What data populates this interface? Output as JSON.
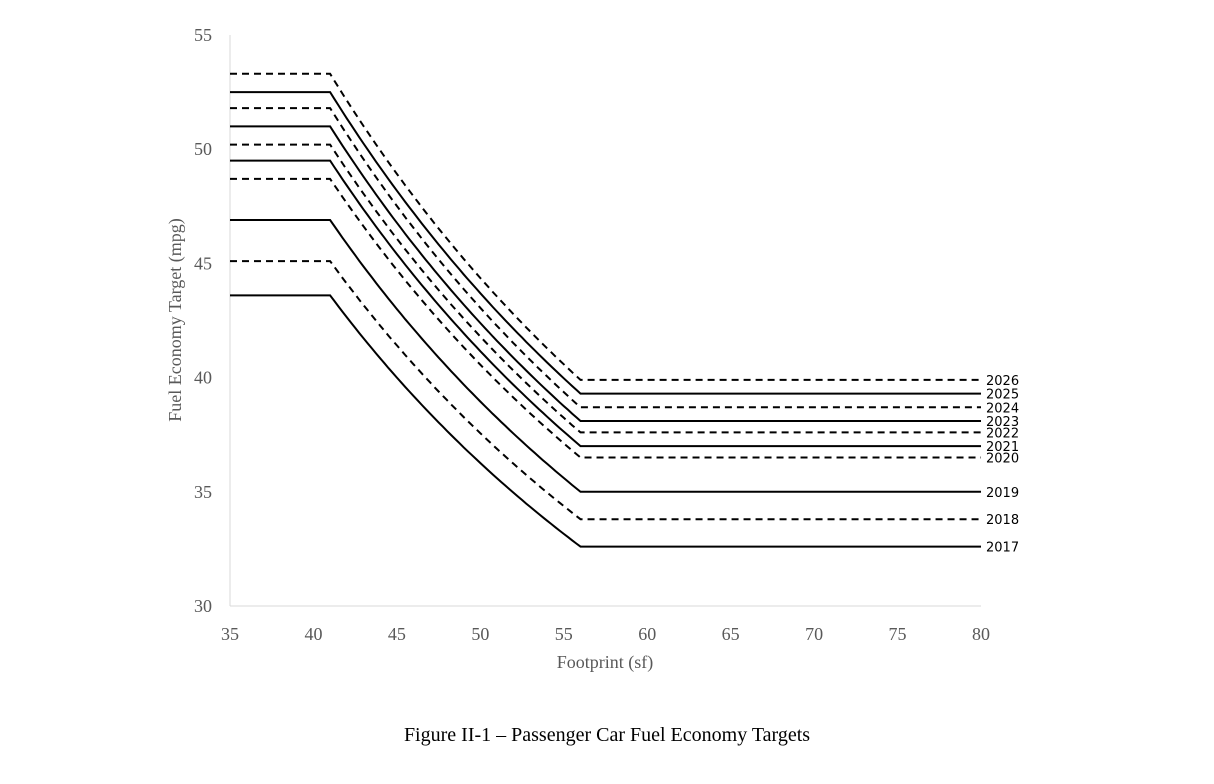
{
  "chart_data": {
    "type": "line",
    "title": "Figure II-1 – Passenger Car Fuel Economy Targets",
    "xlabel": "Footprint (sf)",
    "ylabel": "Fuel Economy Target (mpg)",
    "xlim": [
      35,
      80
    ],
    "ylim": [
      30,
      55
    ],
    "xticks": [
      "35",
      "40",
      "45",
      "50",
      "55",
      "60",
      "65",
      "70",
      "75",
      "80"
    ],
    "yticks": [
      "30",
      "35",
      "40",
      "45",
      "50",
      "55"
    ],
    "grid": false,
    "breakpoints": [
      41,
      56
    ],
    "series": [
      {
        "name": "2026",
        "style": "dashed",
        "max_mpg": 53.3,
        "min_mpg": 39.9
      },
      {
        "name": "2025",
        "style": "solid",
        "max_mpg": 52.5,
        "min_mpg": 39.3
      },
      {
        "name": "2024",
        "style": "dashed",
        "max_mpg": 51.8,
        "min_mpg": 38.7
      },
      {
        "name": "2023",
        "style": "solid",
        "max_mpg": 51.0,
        "min_mpg": 38.1
      },
      {
        "name": "2022",
        "style": "dashed",
        "max_mpg": 50.2,
        "min_mpg": 37.6
      },
      {
        "name": "2021",
        "style": "solid",
        "max_mpg": 49.5,
        "min_mpg": 37.0
      },
      {
        "name": "2020",
        "style": "dashed",
        "max_mpg": 48.7,
        "min_mpg": 36.5
      },
      {
        "name": "2019",
        "style": "solid",
        "max_mpg": 46.9,
        "min_mpg": 35.0
      },
      {
        "name": "2018",
        "style": "dashed",
        "max_mpg": 45.1,
        "min_mpg": 33.8
      },
      {
        "name": "2017",
        "style": "solid",
        "max_mpg": 43.6,
        "min_mpg": 32.6
      }
    ]
  }
}
